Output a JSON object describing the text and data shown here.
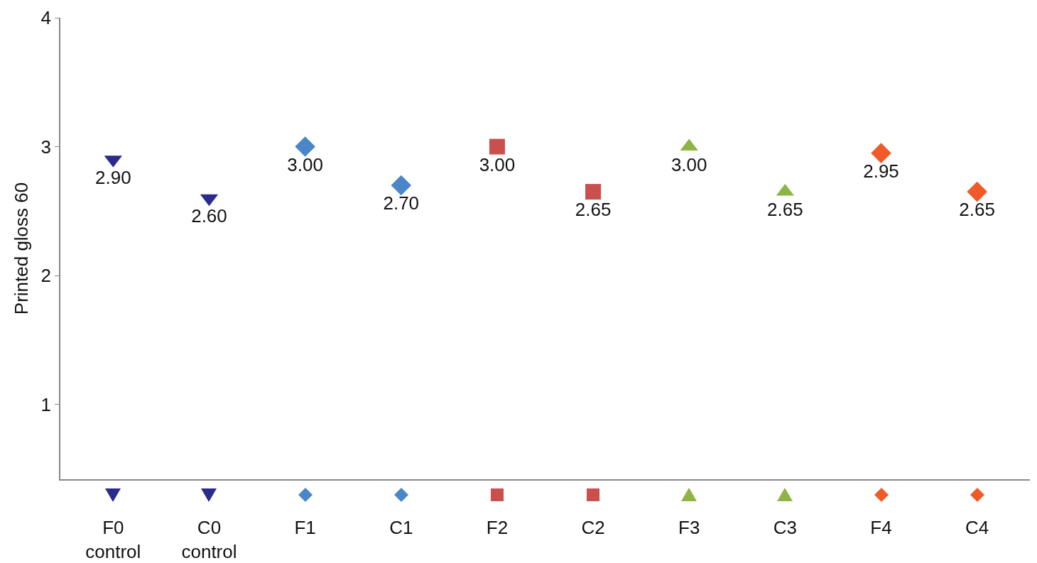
{
  "chart_data": {
    "type": "scatter",
    "ylabel": "Printed gloss 60",
    "categories": [
      "F0\ncontrol",
      "C0\ncontrol",
      "F1",
      "C1",
      "F2",
      "C2",
      "F3",
      "C3",
      "F4",
      "C4"
    ],
    "series": [
      {
        "x": [
          "F0\ncontrol",
          "C0\ncontrol"
        ],
        "values": [
          2.9,
          2.6
        ],
        "value_labels": [
          "2.90",
          "2.60"
        ],
        "color": "#2b2b8c",
        "marker": "triangle-down"
      },
      {
        "x": [
          "F1",
          "C1"
        ],
        "values": [
          3.0,
          2.7
        ],
        "value_labels": [
          "3.00",
          "2.70"
        ],
        "color": "#4a86c8",
        "marker": "diamond"
      },
      {
        "x": [
          "F2",
          "C2"
        ],
        "values": [
          3.0,
          2.65
        ],
        "value_labels": [
          "3.00",
          "2.65"
        ],
        "color": "#c9504c",
        "marker": "square"
      },
      {
        "x": [
          "F3",
          "C3"
        ],
        "values": [
          3.0,
          2.65
        ],
        "value_labels": [
          "3.00",
          "2.65"
        ],
        "color": "#8db546",
        "marker": "triangle"
      },
      {
        "x": [
          "F4",
          "C4"
        ],
        "values": [
          2.95,
          2.65
        ],
        "value_labels": [
          "2.95",
          "2.65"
        ],
        "color": "#f05a28",
        "marker": "diamond"
      }
    ],
    "ylim": [
      0.42,
      4
    ],
    "yticks": [
      1,
      2,
      3,
      4
    ],
    "grid": false
  }
}
